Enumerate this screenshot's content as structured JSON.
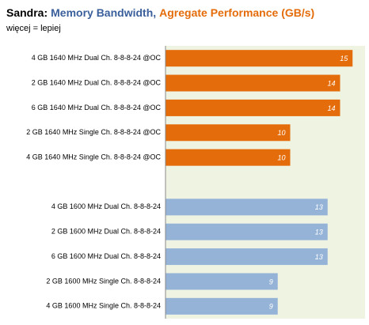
{
  "chart_data": {
    "type": "bar",
    "orientation": "horizontal",
    "title": [
      {
        "text": "Sandra:",
        "color": "#000000"
      },
      {
        "text": "Memory Bandwidth,",
        "color": "#3a5f9b"
      },
      {
        "text": "Agregate Performance (GB/s)",
        "color": "#e46c0a"
      }
    ],
    "subtitle": "więcej = lepiej",
    "categories": [
      "4 GB 1640 MHz Dual Ch. 8-8-8-24 @OC",
      "2 GB 1640 MHz Dual Ch. 8-8-8-24 @OC",
      "6 GB 1640 MHz Dual Ch. 8-8-8-24 @OC",
      "2 GB 1640 MHz Single Ch. 8-8-8-24 @OC",
      "4 GB 1640 MHz Single Ch. 8-8-8-24 @OC",
      null,
      "4 GB 1600 MHz Dual Ch. 8-8-8-24",
      "2 GB 1600 MHz Dual Ch. 8-8-8-24",
      "6 GB 1600 MHz Dual Ch. 8-8-8-24",
      "2 GB 1600 MHz Single Ch. 8-8-8-24",
      "4 GB 1600 MHz Single Ch. 8-8-8-24"
    ],
    "values": [
      15,
      14,
      14,
      10,
      10,
      null,
      13,
      13,
      13,
      9,
      9
    ],
    "colors": [
      "#e46c0a",
      "#e46c0a",
      "#e46c0a",
      "#e46c0a",
      "#e46c0a",
      null,
      "#95b3d7",
      "#95b3d7",
      "#95b3d7",
      "#95b3d7",
      "#95b3d7"
    ],
    "xlim": [
      0,
      16
    ]
  }
}
